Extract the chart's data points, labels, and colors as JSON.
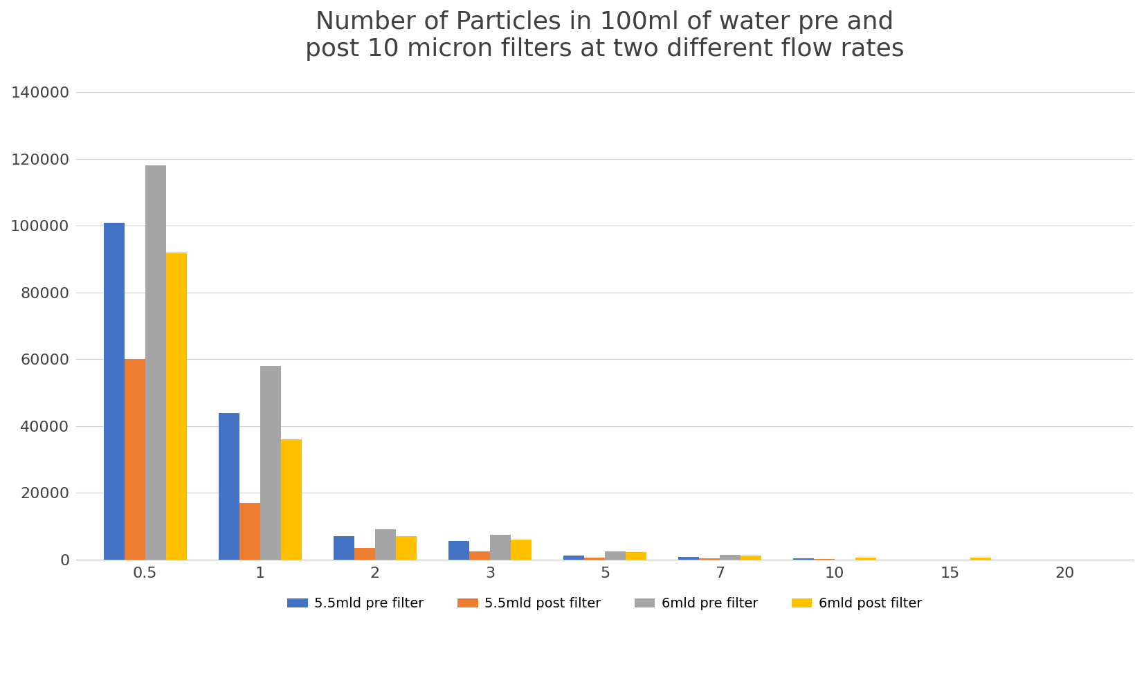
{
  "title": "Number of Particles in 100ml of water pre and\npost 10 micron filters at two different flow rates",
  "categories": [
    0.5,
    1,
    2,
    3,
    5,
    7,
    10,
    15,
    20
  ],
  "series": {
    "5.5mld pre filter": {
      "values": [
        101000,
        44000,
        7000,
        5500,
        1200,
        900,
        400,
        0,
        0
      ],
      "color": "#4472C4"
    },
    "5.5mld post filter": {
      "values": [
        60000,
        17000,
        3500,
        2500,
        700,
        400,
        200,
        0,
        0
      ],
      "color": "#ED7D31"
    },
    "6mld pre filter": {
      "values": [
        118000,
        58000,
        9000,
        7500,
        2500,
        1500,
        0,
        0,
        0
      ],
      "color": "#A5A5A5"
    },
    "6mld post filter": {
      "values": [
        92000,
        36000,
        7000,
        6000,
        2200,
        1200,
        700,
        500,
        0
      ],
      "color": "#FFC000"
    }
  },
  "ylim": [
    0,
    145000
  ],
  "yticks": [
    0,
    20000,
    40000,
    60000,
    80000,
    100000,
    120000,
    140000
  ],
  "background_color": "#FFFFFF",
  "grid_color": "#D3D3D3",
  "title_fontsize": 26,
  "tick_fontsize": 16,
  "legend_fontsize": 14,
  "bar_width": 0.18
}
